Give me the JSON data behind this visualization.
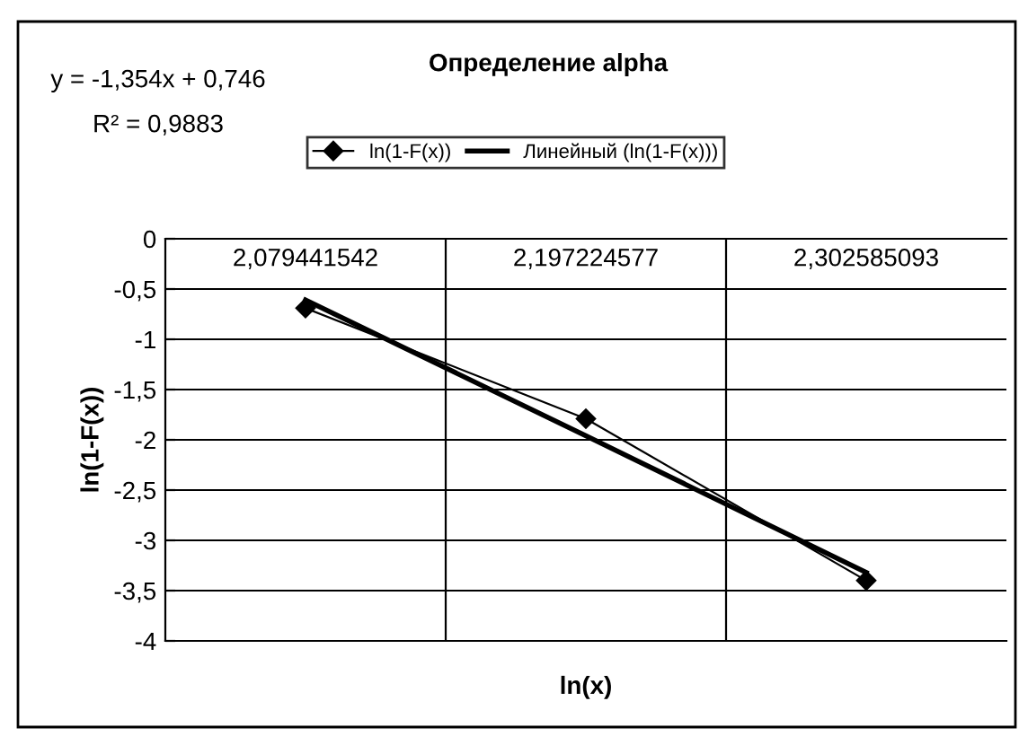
{
  "chart_data": {
    "type": "line",
    "title": "Определение alpha",
    "xlabel": "ln(x)",
    "ylabel": "ln(1-F(x))",
    "categories": [
      "2,079441542",
      "2,197224577",
      "2,302585093"
    ],
    "series": [
      {
        "name": "ln(1-F(x))",
        "color": "#000000",
        "values": [
          -0.69,
          -1.79,
          -3.4
        ],
        "marker": "diamond"
      },
      {
        "name": "Линейный (ln(1-F(x)))",
        "color": "#000000",
        "values": [
          -0.61,
          -1.96,
          -3.32
        ],
        "marker": "none"
      }
    ],
    "ylim": [
      -4,
      0
    ],
    "yticks": [
      0,
      {
        "value": -0.5,
        "label": "-0,5"
      },
      -1,
      {
        "value": -1.5,
        "label": "-1,5"
      },
      -2,
      {
        "value": -2.5,
        "label": "-2,5"
      },
      -3,
      {
        "value": -3.5,
        "label": "-3,5"
      },
      -4
    ],
    "grid": true,
    "legend": "top",
    "annotations": [
      "y = -1,354x + 0,746",
      "R² = 0,9883"
    ]
  }
}
